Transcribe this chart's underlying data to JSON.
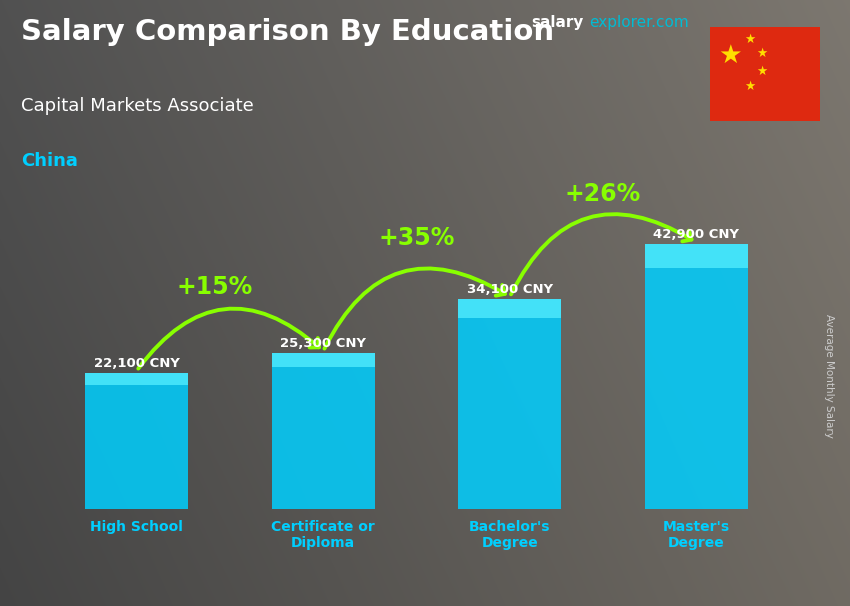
{
  "title_line1": "Salary Comparison By Education",
  "subtitle": "Capital Markets Associate",
  "country": "China",
  "site_label": "salaryexplorer.com",
  "site_salary_color": "#ffffff",
  "site_explorer_color": "#00bcd4",
  "ylabel": "Average Monthly Salary",
  "categories": [
    "High School",
    "Certificate or\nDiploma",
    "Bachelor's\nDegree",
    "Master's\nDegree"
  ],
  "values": [
    22100,
    25300,
    34100,
    42900
  ],
  "value_labels": [
    "22,100 CNY",
    "25,300 CNY",
    "34,100 CNY",
    "42,900 CNY"
  ],
  "pct_labels": [
    "+15%",
    "+35%",
    "+26%"
  ],
  "bar_color_main": "#00cfff",
  "bar_color_light": "#55eeff",
  "bar_color_dark": "#0099cc",
  "bar_alpha": 0.85,
  "bg_color": "#555555",
  "title_color": "#ffffff",
  "subtitle_color": "#ffffff",
  "country_color": "#00cfff",
  "value_color": "#ffffff",
  "pct_color": "#88ff00",
  "arrow_color": "#88ff00",
  "xlabel_color": "#00cfff",
  "ylabel_color": "#cccccc",
  "ylim": [
    0,
    55000
  ],
  "bar_width": 0.55,
  "figsize": [
    8.5,
    6.06
  ],
  "dpi": 100
}
